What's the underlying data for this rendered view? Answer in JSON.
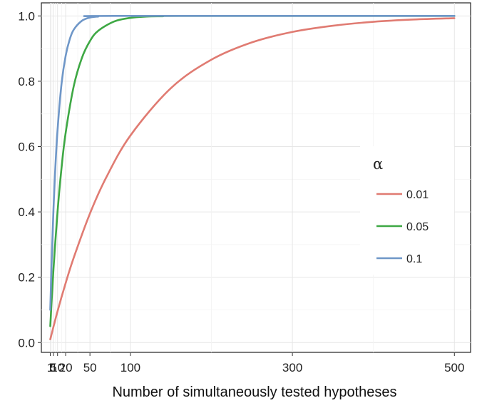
{
  "chart_data": {
    "type": "line",
    "xlabel": "Number of simultaneously tested hypotheses",
    "ylabel": "",
    "xlim": [
      -10,
      520
    ],
    "ylim": [
      -0.03,
      1.04
    ],
    "x_ticks": [
      1,
      5,
      10,
      20,
      50,
      100,
      300,
      500
    ],
    "x_tick_labels": [
      "1",
      "5",
      "10",
      "20",
      "50",
      "100",
      "300",
      "500"
    ],
    "y_ticks": [
      0.0,
      0.2,
      0.4,
      0.6,
      0.8,
      1.0
    ],
    "y_tick_labels": [
      "0.0",
      "0.2",
      "0.4",
      "0.6",
      "0.8",
      "1.0"
    ],
    "grid": true,
    "legend": {
      "title": "α",
      "position": "right",
      "entries": [
        "0.01",
        "0.05",
        "0.1"
      ]
    },
    "series": [
      {
        "name": "0.01",
        "color": "#e07b72",
        "x": [
          1,
          10,
          20,
          30,
          50,
          70,
          100,
          150,
          200,
          250,
          300,
          350,
          400,
          450,
          500
        ],
        "y": [
          0.01,
          0.096,
          0.182,
          0.26,
          0.395,
          0.505,
          0.634,
          0.779,
          0.866,
          0.919,
          0.951,
          0.97,
          0.982,
          0.989,
          0.993
        ]
      },
      {
        "name": "0.05",
        "color": "#3ea844",
        "x": [
          1,
          5,
          10,
          15,
          20,
          30,
          40,
          50,
          60,
          80,
          100,
          120,
          140,
          160,
          500
        ],
        "y": [
          0.05,
          0.226,
          0.401,
          0.537,
          0.642,
          0.785,
          0.871,
          0.923,
          0.954,
          0.983,
          0.994,
          0.998,
          0.999,
          1.0,
          1.0
        ]
      },
      {
        "name": "0.1",
        "color": "#6f97c8",
        "x": [
          1,
          3,
          5,
          7,
          10,
          15,
          20,
          25,
          30,
          40,
          50,
          60,
          80,
          500
        ],
        "y": [
          0.1,
          0.271,
          0.41,
          0.522,
          0.651,
          0.794,
          0.878,
          0.928,
          0.958,
          0.985,
          0.995,
          0.998,
          1.0,
          1.0
        ]
      }
    ]
  }
}
